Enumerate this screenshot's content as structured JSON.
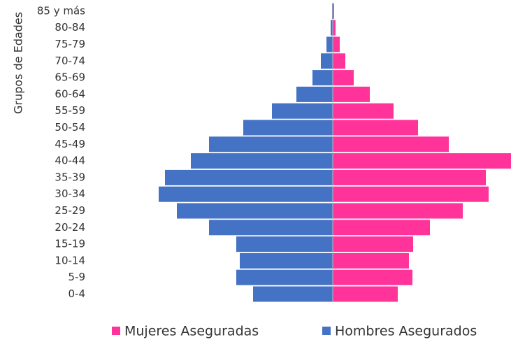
{
  "chart_data": {
    "type": "pyramid",
    "y_label": "Grupos de Edades",
    "categories": [
      "85 y más",
      "80-84",
      "75-79",
      "70-74",
      "65-69",
      "60-64",
      "55-59",
      "50-54",
      "45-49",
      "40-44",
      "35-39",
      "30-34",
      "25-29",
      "20-24",
      "15-19",
      "10-14",
      "5-9",
      "0-4"
    ],
    "series": [
      {
        "name": "Mujeres Aseguradas",
        "color": "#ff3399",
        "side": "right",
        "values": [
          2,
          4,
          10,
          18,
          30,
          53,
          87,
          122,
          166,
          255,
          219,
          223,
          186,
          139,
          115,
          109,
          114,
          93
        ]
      },
      {
        "name": "Hombres Asegurados",
        "color": "#4472c4",
        "side": "left",
        "values": [
          1,
          3,
          9,
          17,
          29,
          52,
          87,
          128,
          177,
          203,
          240,
          249,
          223,
          177,
          138,
          133,
          138,
          114
        ]
      }
    ],
    "legend": "bottom"
  }
}
